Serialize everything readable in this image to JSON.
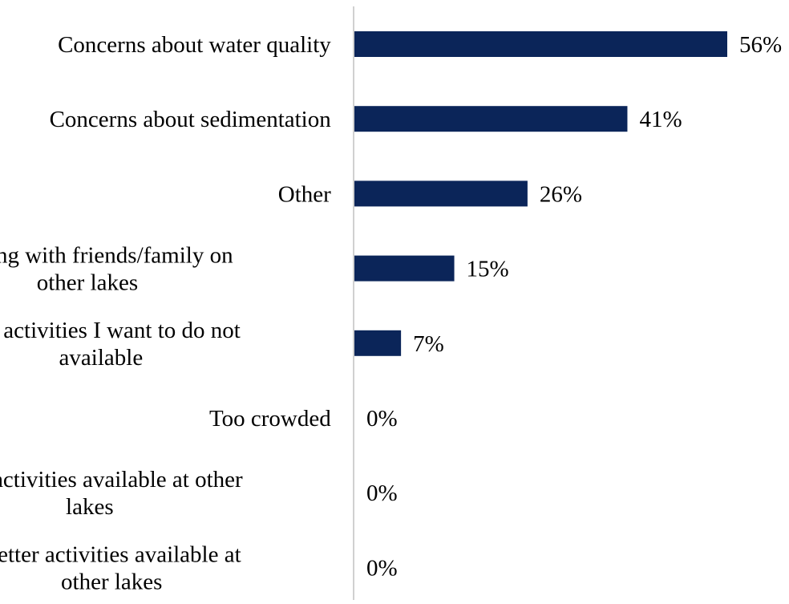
{
  "chart_data": {
    "type": "bar",
    "orientation": "horizontal",
    "categories": [
      [
        "Concerns about water quality"
      ],
      [
        "Concerns about sedimentation"
      ],
      [
        "Other"
      ],
      [
        "Meeting with friends/family on",
        "other lakes"
      ],
      [
        "The activities I want to do not",
        "available"
      ],
      [
        "Too crowded"
      ],
      [
        "More activities available at other",
        "lakes"
      ],
      [
        "Better activities available at",
        "other lakes"
      ]
    ],
    "values": [
      56,
      41,
      26,
      15,
      7,
      0,
      0,
      0
    ],
    "value_labels": [
      "56%",
      "41%",
      "26%",
      "15%",
      "7%",
      "0%",
      "0%",
      "0%"
    ],
    "value_unit": "%",
    "xlim": [
      0,
      56
    ],
    "grid": false,
    "legend": "none",
    "title": "",
    "xlabel": "",
    "ylabel": ""
  },
  "colors": {
    "bar": "#0b2559",
    "axis": "#d0d0d0",
    "text": "#000000"
  }
}
